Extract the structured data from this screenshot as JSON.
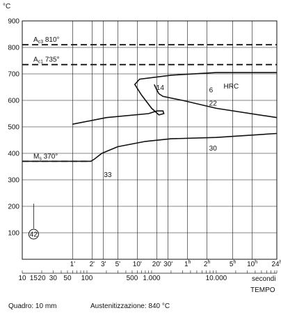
{
  "chart_data": {
    "type": "line",
    "title": "",
    "ylabel": "°C",
    "xlabel": "TEMPO",
    "ylim": [
      0,
      900
    ],
    "y_ticks": [
      "900",
      "800",
      "700",
      "600",
      "500",
      "400",
      "300",
      "200",
      "100"
    ],
    "x_time_ticks": [
      "1'",
      "2'",
      "3'",
      "5'",
      "10'",
      "20'",
      "30'",
      "1h",
      "2h",
      "5h",
      "10h",
      "24h"
    ],
    "x_seconds_ticks": [
      "10",
      "15",
      "20",
      "30",
      "50",
      "100",
      "500",
      "1.000",
      "10.000"
    ],
    "x_seconds_label": "secondi",
    "grid": true,
    "reference_lines": [
      {
        "name": "Ac3 810°",
        "y": 810
      },
      {
        "name": "Ac1 735°",
        "y": 735
      },
      {
        "name": "Ms 370°",
        "y": 370
      }
    ],
    "series": [
      {
        "values": [
          [
            60,
            510
          ],
          [
            200,
            535
          ],
          [
            900,
            550
          ],
          [
            1200,
            560
          ],
          [
            1500,
            560
          ],
          [
            1550,
            550
          ],
          [
            1300,
            545
          ],
          [
            1000,
            570
          ],
          [
            700,
            620
          ],
          [
            550,
            660
          ],
          [
            650,
            680
          ],
          [
            2000,
            695
          ],
          [
            10000,
            705
          ],
          [
            86400,
            705
          ]
        ]
      },
      {
        "values": [
          [
            1100,
            660
          ],
          [
            1200,
            640
          ],
          [
            1300,
            625
          ],
          [
            1500,
            615
          ],
          [
            3000,
            600
          ],
          [
            10000,
            570
          ],
          [
            86400,
            535
          ]
        ]
      },
      {
        "values": [
          [
            10,
            370
          ],
          [
            115,
            370
          ],
          [
            130,
            378
          ],
          [
            170,
            400
          ],
          [
            300,
            425
          ],
          [
            800,
            445
          ],
          [
            2000,
            455
          ],
          [
            10000,
            460
          ],
          [
            86400,
            475
          ]
        ]
      }
    ],
    "annotations": [
      {
        "text": "14",
        "x": 1100,
        "y": 640
      },
      {
        "text": "6",
        "x": 7200,
        "y": 630
      },
      {
        "text": "HRC",
        "x": 13000,
        "y": 645
      },
      {
        "text": "22",
        "x": 7200,
        "y": 580
      },
      {
        "text": "30",
        "x": 7200,
        "y": 410
      },
      {
        "text": "33",
        "x": 170,
        "y": 310
      },
      {
        "text": "42",
        "x": 15,
        "y": 100
      }
    ],
    "footer": {
      "size": "Quadro: 10 mm",
      "austenitization": "Austenitizzazione: 840 °C"
    }
  }
}
